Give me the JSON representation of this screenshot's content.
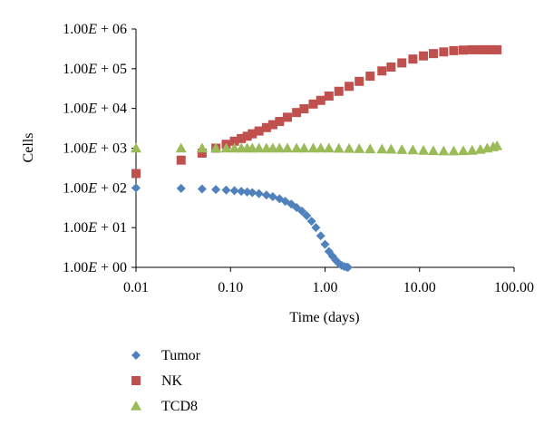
{
  "chart_data": {
    "type": "scatter",
    "title": "",
    "xlabel": "Time (days)",
    "ylabel": "Cells",
    "x_scale": "log",
    "y_scale": "log",
    "xlim": [
      0.01,
      100
    ],
    "ylim": [
      1,
      1000000
    ],
    "x_ticks": [
      0.01,
      0.1,
      1,
      10,
      100
    ],
    "x_tick_labels": [
      "0.01",
      "0.10",
      "1.00",
      "10.00",
      "100.00"
    ],
    "y_ticks": [
      1,
      10,
      100,
      1000,
      10000,
      100000,
      1000000
    ],
    "y_tick_labels": [
      {
        "mantissa": "1.00",
        "e": "E",
        "rest": " + 00"
      },
      {
        "mantissa": "1.00",
        "e": "E",
        "rest": " + 01"
      },
      {
        "mantissa": "1.00",
        "e": "E",
        "rest": " + 02"
      },
      {
        "mantissa": "1.00",
        "e": "E",
        "rest": " + 03"
      },
      {
        "mantissa": "1.00",
        "e": "E",
        "rest": " + 04"
      },
      {
        "mantissa": "1.00",
        "e": "E",
        "rest": " + 05"
      },
      {
        "mantissa": "1.00",
        "e": "E",
        "rest": " + 06"
      }
    ],
    "grid": false,
    "legend_position": "bottom-left",
    "series": [
      {
        "name": "Tumor",
        "marker": "diamond",
        "color": "#4f81bd",
        "x": [
          0.01,
          0.03,
          0.05,
          0.07,
          0.09,
          0.11,
          0.13,
          0.15,
          0.17,
          0.2,
          0.24,
          0.28,
          0.33,
          0.38,
          0.44,
          0.5,
          0.57,
          0.64,
          0.72,
          0.8,
          0.9,
          1.0,
          1.1,
          1.2,
          1.3,
          1.4,
          1.5,
          1.6,
          1.7,
          1.75
        ],
        "y": [
          100,
          97,
          94,
          91,
          88,
          85,
          82,
          79,
          76,
          72,
          66,
          60,
          53,
          46,
          39,
          32,
          26,
          20,
          14.5,
          10,
          6.2,
          3.8,
          2.5,
          1.9,
          1.5,
          1.25,
          1.12,
          1.05,
          1.01,
          1.0
        ]
      },
      {
        "name": "NK",
        "marker": "square",
        "color": "#c0504d",
        "x": [
          0.01,
          0.03,
          0.05,
          0.07,
          0.09,
          0.11,
          0.13,
          0.15,
          0.17,
          0.2,
          0.24,
          0.28,
          0.33,
          0.4,
          0.5,
          0.6,
          0.75,
          0.9,
          1.1,
          1.4,
          1.8,
          2.3,
          3,
          4,
          5,
          6.5,
          8.5,
          11,
          14,
          18,
          23,
          29,
          36,
          44,
          52,
          60,
          66
        ],
        "y": [
          230,
          500,
          750,
          1000,
          1250,
          1500,
          1750,
          2000,
          2300,
          2700,
          3300,
          3900,
          4700,
          6000,
          7900,
          9800,
          12900,
          16000,
          20500,
          27000,
          36000,
          48000,
          65000,
          88000,
          110000,
          140000,
          175000,
          210000,
          240000,
          265000,
          285000,
          295000,
          300000,
          300000,
          300000,
          300000,
          300000
        ]
      },
      {
        "name": "TCD8",
        "marker": "triangle",
        "color": "#9bbb59",
        "x": [
          0.01,
          0.03,
          0.05,
          0.07,
          0.09,
          0.11,
          0.13,
          0.15,
          0.17,
          0.2,
          0.24,
          0.28,
          0.33,
          0.4,
          0.5,
          0.6,
          0.75,
          0.9,
          1.1,
          1.4,
          1.8,
          2.3,
          3,
          4,
          5,
          6.5,
          8.5,
          11,
          14,
          18,
          23,
          29,
          36,
          44,
          52,
          60,
          66
        ],
        "y": [
          1000,
          1000,
          1000,
          1000,
          1000,
          1000,
          1000,
          1000,
          1000,
          1000,
          1000,
          1000,
          1000,
          1000,
          1000,
          1000,
          1000,
          1000,
          1000,
          990,
          980,
          970,
          960,
          950,
          940,
          920,
          900,
          880,
          860,
          850,
          850,
          860,
          880,
          930,
          1000,
          1080,
          1150
        ]
      }
    ]
  }
}
